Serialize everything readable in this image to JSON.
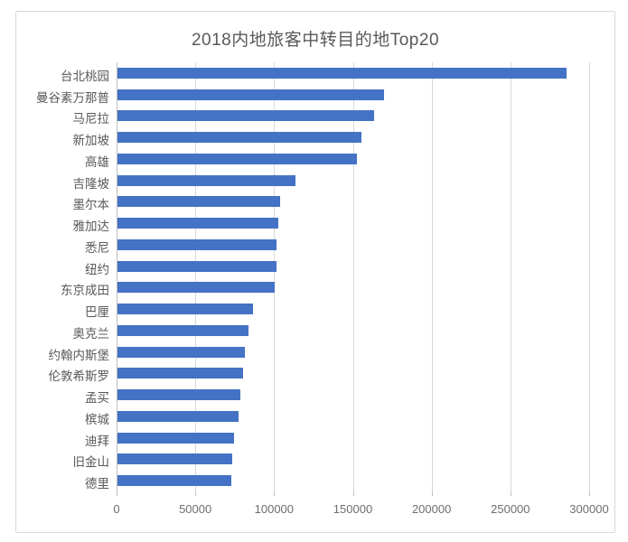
{
  "chart_data": {
    "type": "bar",
    "orientation": "horizontal",
    "title": "2018内地旅客中转目的地Top20",
    "categories": [
      "台北桃园",
      "曼谷素万那普",
      "马尼拉",
      "新加坡",
      "高雄",
      "吉隆坡",
      "墨尔本",
      "雅加达",
      "悉尼",
      "纽约",
      "东京成田",
      "巴厘",
      "奥克兰",
      "约翰内斯堡",
      "伦敦希斯罗",
      "孟买",
      "槟城",
      "迪拜",
      "旧金山",
      "德里"
    ],
    "values": [
      285000,
      169000,
      163000,
      155000,
      152000,
      113000,
      103000,
      102000,
      101000,
      101000,
      100000,
      86000,
      83000,
      81000,
      80000,
      78000,
      77000,
      74000,
      73000,
      72000
    ],
    "xlabel": "",
    "ylabel": "",
    "xlim": [
      0,
      300000
    ],
    "x_ticks": [
      0,
      50000,
      100000,
      150000,
      200000,
      250000,
      300000
    ],
    "x_tick_labels": [
      "0",
      "50000",
      "100000",
      "150000",
      "200000",
      "250000",
      "300000"
    ],
    "grid": "vertical-gridlines-on",
    "legend": "none",
    "bar_color": "#4472C4",
    "gridline_color": "#d9d9d9",
    "axis_line_color": "#bfbfbf",
    "frame_border_color": "#d7d7d7",
    "title_color": "#595959",
    "tick_label_color": "#6e6e6e",
    "category_label_color": "#595959"
  }
}
